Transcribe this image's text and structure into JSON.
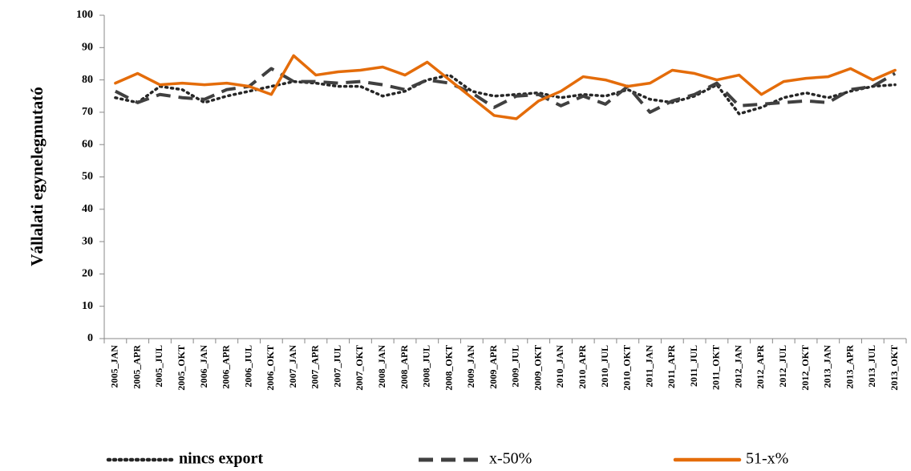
{
  "chart_data": {
    "type": "line",
    "y_label": "Vállalati egynelegmutató",
    "categories": [
      "2005_JAN",
      "2005_APR",
      "2005_JUL",
      "2005_OKT",
      "2006_JAN",
      "2006_APR",
      "2006_JUL",
      "2006_OKT",
      "2007_JAN",
      "2007_APR",
      "2007_JUL",
      "2007_OKT",
      "2008_JAN",
      "2008_APR",
      "2008_JUL",
      "2008_OKT",
      "2009_JAN",
      "2009_APR",
      "2009_JUL",
      "2009_OKT",
      "2010_JAN",
      "2010_APR",
      "2010_JUL",
      "2010_OKT",
      "2011_JAN",
      "2011_APR",
      "2011_JUL",
      "2011_OKT",
      "2012_JAN",
      "2012_APR",
      "2012_JUL",
      "2012_OKT",
      "2013_JAN",
      "2013_APR",
      "2013_JUL",
      "2013_OKT"
    ],
    "series": [
      {
        "name": "nincs export",
        "color": "#262626",
        "line_style": "dotted",
        "values": [
          74.5,
          73,
          78,
          77,
          73,
          75,
          76.5,
          78,
          79.5,
          79,
          78,
          78,
          75,
          76.5,
          80,
          81.5,
          76.5,
          75,
          75.5,
          76,
          74.5,
          75.5,
          75,
          77,
          74,
          73,
          75,
          78.5,
          69.5,
          71.5,
          74.5,
          76,
          74.5,
          76.5,
          78,
          78.5
        ]
      },
      {
        "name": "x-50%",
        "color": "#404040",
        "line_style": "dashed",
        "values": [
          76.5,
          73,
          75.5,
          74.5,
          74,
          77,
          78,
          83.5,
          79.5,
          79.5,
          79,
          79.5,
          78.5,
          77,
          80,
          79,
          76,
          71.5,
          75,
          75.5,
          72,
          75,
          72.5,
          78,
          70,
          73.5,
          75.5,
          79,
          72,
          72.5,
          73,
          73.5,
          73,
          77,
          78,
          82
        ]
      },
      {
        "name": "51-x%",
        "color": "#e46c0a",
        "line_style": "solid",
        "values": [
          79,
          82,
          78.5,
          79,
          78.5,
          79,
          78,
          75.5,
          87.5,
          81.5,
          82.5,
          83,
          84,
          81.5,
          85.5,
          80,
          74.5,
          69,
          68,
          73.5,
          76.5,
          81,
          80,
          78,
          79,
          83,
          82,
          80,
          81.5,
          75.5,
          79.5,
          80.5,
          81,
          83.5,
          80,
          83
        ]
      }
    ],
    "ylim": [
      0,
      100
    ],
    "yticks": [
      0,
      10,
      20,
      30,
      40,
      50,
      60,
      70,
      80,
      90,
      100
    ],
    "grid": false
  }
}
